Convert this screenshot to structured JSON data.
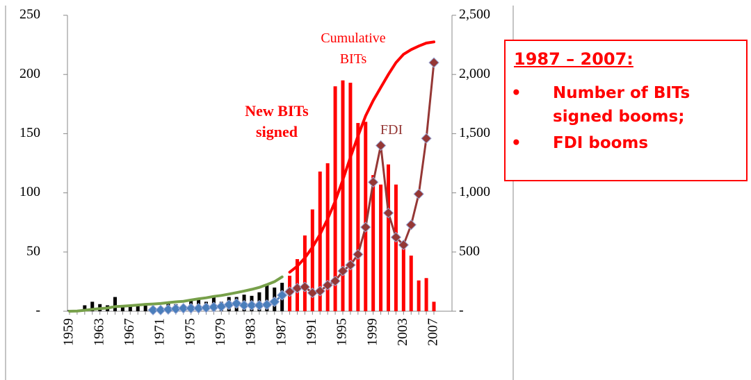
{
  "chart_data": {
    "type": "combo",
    "categories": [
      "1959",
      null,
      null,
      null,
      "1963",
      null,
      null,
      null,
      "1967",
      null,
      null,
      null,
      "1971",
      null,
      null,
      null,
      "1975",
      null,
      null,
      null,
      "1979",
      null,
      null,
      null,
      "1983",
      null,
      null,
      null,
      "1987",
      null,
      null,
      null,
      "1991",
      null,
      null,
      null,
      "1995",
      null,
      null,
      null,
      "1999",
      null,
      null,
      null,
      "2003",
      null,
      null,
      null,
      "2007"
    ],
    "ylim": [
      0,
      250
    ],
    "yticks": [
      {
        "value": 0,
        "label": "-"
      },
      50,
      100,
      150,
      200,
      250
    ],
    "y2lim": [
      0,
      2500
    ],
    "y2ticks": [
      {
        "value": 0,
        "label": "-"
      },
      500,
      {
        "value": 1000,
        "label": "1,000"
      },
      {
        "value": 1500,
        "label": "1,500"
      },
      {
        "value": 2000,
        "label": "2,000"
      },
      {
        "value": 2500,
        "label": "2,500"
      }
    ],
    "series": [
      {
        "type": "bar",
        "color": "#000000",
        "values": [
          1,
          1,
          5,
          8,
          6,
          5,
          12,
          4,
          4,
          5,
          6,
          3,
          4,
          8,
          6,
          5,
          9,
          10,
          8,
          12,
          8,
          12,
          12,
          14,
          13,
          16,
          22,
          20,
          24,
          null,
          null,
          null,
          null,
          null,
          null,
          null,
          null,
          null,
          null,
          null,
          null,
          null,
          null,
          null,
          null,
          null,
          null,
          null,
          null
        ]
      },
      {
        "type": "bar",
        "name": "New BITs signed",
        "color": "#ff0000",
        "values": [
          null,
          null,
          null,
          null,
          null,
          null,
          null,
          null,
          null,
          null,
          null,
          null,
          null,
          null,
          null,
          null,
          null,
          null,
          null,
          null,
          null,
          null,
          null,
          null,
          null,
          null,
          null,
          null,
          null,
          30,
          44,
          64,
          86,
          118,
          125,
          190,
          195,
          193,
          159,
          160,
          115,
          107,
          124,
          107,
          58,
          47,
          26,
          28,
          8
        ]
      },
      {
        "type": "line",
        "axis": "y2",
        "color": "#77a04a",
        "values": [
          0,
          2,
          8,
          16,
          22,
          27,
          39,
          43,
          47,
          52,
          58,
          61,
          65,
          73,
          79,
          84,
          95,
          105,
          113,
          125,
          133,
          145,
          157,
          171,
          185,
          201,
          225,
          250,
          290,
          null,
          null,
          null,
          null,
          null,
          null,
          null,
          null,
          null,
          null,
          null,
          null,
          null,
          null,
          null,
          null,
          null,
          null,
          null,
          null
        ]
      },
      {
        "type": "line",
        "axis": "y2",
        "name": "Cumulative BITs",
        "color": "#ff0000",
        "values": [
          null,
          null,
          null,
          null,
          null,
          null,
          null,
          null,
          null,
          null,
          null,
          null,
          null,
          null,
          null,
          null,
          null,
          null,
          null,
          null,
          null,
          null,
          null,
          null,
          null,
          null,
          null,
          null,
          null,
          330,
          380,
          450,
          540,
          650,
          780,
          930,
          1110,
          1300,
          1480,
          1650,
          1780,
          1890,
          2000,
          2100,
          2170,
          2210,
          2240,
          2265,
          2275
        ]
      },
      {
        "type": "marker-line",
        "axis": "y2",
        "color": "#4a7ebb",
        "values": [
          null,
          null,
          null,
          null,
          null,
          null,
          null,
          null,
          null,
          null,
          null,
          10,
          10,
          15,
          20,
          25,
          25,
          25,
          30,
          35,
          40,
          55,
          65,
          50,
          50,
          50,
          55,
          80,
          135,
          null,
          null,
          null,
          null,
          null,
          null,
          null,
          null,
          null,
          null,
          null,
          null,
          null,
          null,
          null,
          null,
          null,
          null,
          null,
          null
        ]
      },
      {
        "type": "marker-line",
        "axis": "y2",
        "name": "FDI",
        "color": "#953735",
        "values": [
          null,
          null,
          null,
          null,
          null,
          null,
          null,
          null,
          null,
          null,
          null,
          null,
          null,
          null,
          null,
          null,
          null,
          null,
          null,
          null,
          null,
          null,
          null,
          null,
          null,
          null,
          null,
          null,
          null,
          165,
          195,
          205,
          155,
          170,
          220,
          255,
          340,
          390,
          480,
          710,
          1090,
          1400,
          830,
          625,
          560,
          730,
          990,
          1460,
          2100
        ]
      }
    ]
  },
  "callout": {
    "heading": "1987 – 2007:",
    "bullets": [
      "Number of BITs signed booms;",
      "FDI booms"
    ]
  }
}
